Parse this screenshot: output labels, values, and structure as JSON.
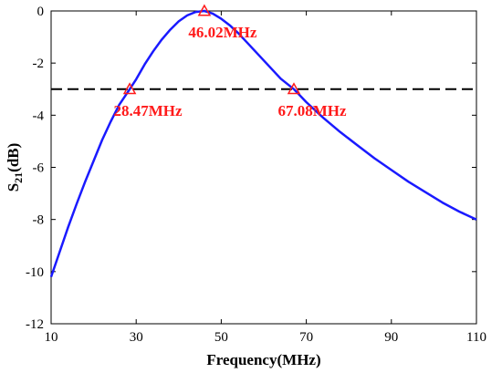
{
  "chart_data": {
    "type": "line",
    "xlabel": "Frequency(MHz)",
    "ylabel_main": "S",
    "ylabel_sub": "21",
    "ylabel_unit": "(dB)",
    "xlim": [
      10,
      110
    ],
    "ylim": [
      -12,
      0
    ],
    "xticks": [
      "10",
      "30",
      "50",
      "70",
      "90",
      "110"
    ],
    "yticks": [
      "0",
      "-2",
      "-4",
      "-6",
      "-8",
      "-10",
      "-12"
    ],
    "grid": false,
    "colors": {
      "curve": "#1a1aff",
      "marker": "#ff1a1a",
      "reference": "#000000"
    },
    "series": [
      {
        "x": [
          10,
          12,
          14,
          16,
          18,
          20,
          22,
          24,
          26,
          28.47,
          30,
          32,
          34,
          36,
          38,
          40,
          42,
          44,
          46.02,
          48,
          50,
          52,
          54,
          56,
          58,
          60,
          62,
          64,
          67.08,
          70,
          74,
          78,
          82,
          86,
          90,
          94,
          98,
          102,
          106,
          110
        ],
        "y": [
          -10.2,
          -9.25,
          -8.3,
          -7.4,
          -6.55,
          -5.75,
          -4.95,
          -4.25,
          -3.6,
          -3.0,
          -2.62,
          -2.05,
          -1.55,
          -1.1,
          -0.72,
          -0.4,
          -0.17,
          -0.04,
          0.0,
          -0.1,
          -0.3,
          -0.55,
          -0.85,
          -1.2,
          -1.55,
          -1.9,
          -2.25,
          -2.6,
          -3.0,
          -3.5,
          -4.1,
          -4.65,
          -5.15,
          -5.65,
          -6.1,
          -6.55,
          -6.95,
          -7.35,
          -7.7,
          -8.0
        ]
      }
    ],
    "reference_line": {
      "y": -3,
      "style": "dashed"
    },
    "markers": [
      {
        "x": 46.02,
        "y": 0,
        "label": "46.02MHz",
        "label_position": "below"
      },
      {
        "x": 28.47,
        "y": -3,
        "label": "28.47MHz",
        "label_position": "below"
      },
      {
        "x": 67.08,
        "y": -3,
        "label": "67.08MHz",
        "label_position": "below"
      }
    ]
  }
}
